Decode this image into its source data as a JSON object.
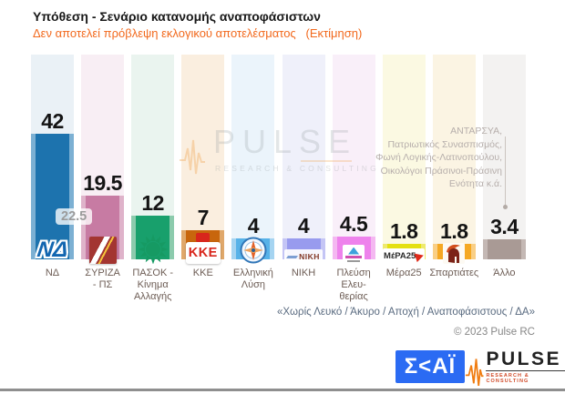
{
  "header": {
    "title": "Υπόθεση - Σενάριο κατανομής αναποφάσιστων",
    "subtitle": "Δεν αποτελεί πρόβλεψη εκλογικού αποτελέσματος   (Εκτίμηση)"
  },
  "chart_data": {
    "type": "bar",
    "title": "Υπόθεση - Σενάριο κατανομής αναποφάσιστων",
    "subtitle": "Δεν αποτελεί πρόβλεψη εκλογικού αποτελέσματος (Εκτίμηση)",
    "unit": "percent",
    "categories": [
      "ΝΔ",
      "ΣΥΡΙΖΑ - ΠΣ",
      "ΠΑΣΟΚ - Κίνημα Αλλαγής",
      "ΚΚΕ",
      "Ελληνική Λύση",
      "ΝΙΚΗ",
      "Πλεύση Ελευθερίας",
      "Μέρα25",
      "Σπαρτιάτες",
      "Άλλο"
    ],
    "values": [
      42,
      19.5,
      12,
      7,
      4,
      4,
      4.5,
      1.8,
      1.8,
      3.4
    ],
    "lead_difference_label": "22.5",
    "ylim": [
      0,
      67
    ],
    "grid": false,
    "legend": false
  },
  "parties": [
    {
      "id": "nd",
      "name": "ΝΔ",
      "label": "ΝΔ",
      "value": 42,
      "value_label": "42",
      "icon": "nd-logo",
      "color": "#1d73ae",
      "edge": "#7cb0d3",
      "tint": "#eaf1f6"
    },
    {
      "id": "syriza",
      "name": "ΣΥΡΙΖΑ - ΠΣ",
      "label": "ΣΥΡΙΖΑ\n- ΠΣ",
      "value": 19.5,
      "value_label": "19.5",
      "icon": "syriza-logo",
      "color": "#c77ba3",
      "edge": "#dfb3ca",
      "tint": "#f8eef4"
    },
    {
      "id": "pasok",
      "name": "ΠΑΣΟΚ - Κίνημα Αλλαγής",
      "label": "ΠΑΣΟΚ -\nΚίνημα\nΑλλαγής",
      "value": 12,
      "value_label": "12",
      "icon": "pasok-logo",
      "color": "#18a06c",
      "edge": "#8ccbad",
      "tint": "#eaf4ef"
    },
    {
      "id": "kke",
      "name": "ΚΚΕ",
      "label": "ΚΚΕ",
      "value": 7,
      "value_label": "7",
      "icon": "kke-logo",
      "color": "#c8660d",
      "edge": "#e0a86b",
      "tint": "#faeedf"
    },
    {
      "id": "ellysi",
      "name": "Ελληνική Λύση",
      "label": "Ελληνική\nΛύση",
      "value": 4,
      "value_label": "4",
      "icon": "elliniki-lysi-logo",
      "color": "#57b2e8",
      "edge": "#a5d4f1",
      "tint": "#ebf4fb"
    },
    {
      "id": "niki",
      "name": "ΝΙΚΗ",
      "label": "ΝΙΚΗ",
      "value": 4,
      "value_label": "4",
      "icon": "niki-logo",
      "color": "#989bee",
      "edge": "#c4c5f5",
      "tint": "#eff0fa"
    },
    {
      "id": "plefsi",
      "name": "Πλεύση Ελευθερίας",
      "label": "Πλεύση\nΕλευ-\nθερίας",
      "value": 4.5,
      "value_label": "4.5",
      "icon": "plefsi-logo",
      "color": "#ee82ec",
      "edge": "#f4b8f1",
      "tint": "#f9eff9"
    },
    {
      "id": "mera25",
      "name": "Μέρα25",
      "label": "Μέρα25",
      "value": 1.8,
      "value_label": "1.8",
      "icon": "mera25-logo",
      "color": "#e4e011",
      "edge": "#eeea6e",
      "tint": "#fbf9e2"
    },
    {
      "id": "spartiates",
      "name": "Σπαρτιάτες",
      "label": "Σπαρτιάτες",
      "value": 1.8,
      "value_label": "1.8",
      "icon": "spartiates-logo",
      "color": "#f5a823",
      "edge": "#f9cf86",
      "tint": "#fbf4e3"
    },
    {
      "id": "allo",
      "name": "Άλλο",
      "label": "Άλλο",
      "value": 3.4,
      "value_label": "3.4",
      "icon": "none",
      "color": "#a99a95",
      "edge": "#c4b8b4",
      "tint": "#f3f2f1"
    }
  ],
  "annotation": {
    "lines": [
      "ΑΝΤΑΡΣΥΑ,",
      "Πατριωτικός Συνασπισμός,",
      "Φωνή Λογικής-Λατινοπούλου,",
      "Οικολόγοι Πράσινοι-Πράσινη",
      "Ενότητα  κ.ά."
    ],
    "target_party": "Άλλο"
  },
  "watermark": {
    "text": "PULSE",
    "subtext": "RESEARCH & CONSULTING"
  },
  "footer": {
    "note": "«Χωρίς Λευκό / Άκυρο / Αποχή / Αναποφάσιστους / ΔΑ»",
    "copyright": "© 2023 Pulse RC",
    "skai_logo_text": "Σ<ΑΪ",
    "pulse_logo_text": "PULSE",
    "pulse_logo_subtext": "RESEARCH & CONSULTING"
  }
}
